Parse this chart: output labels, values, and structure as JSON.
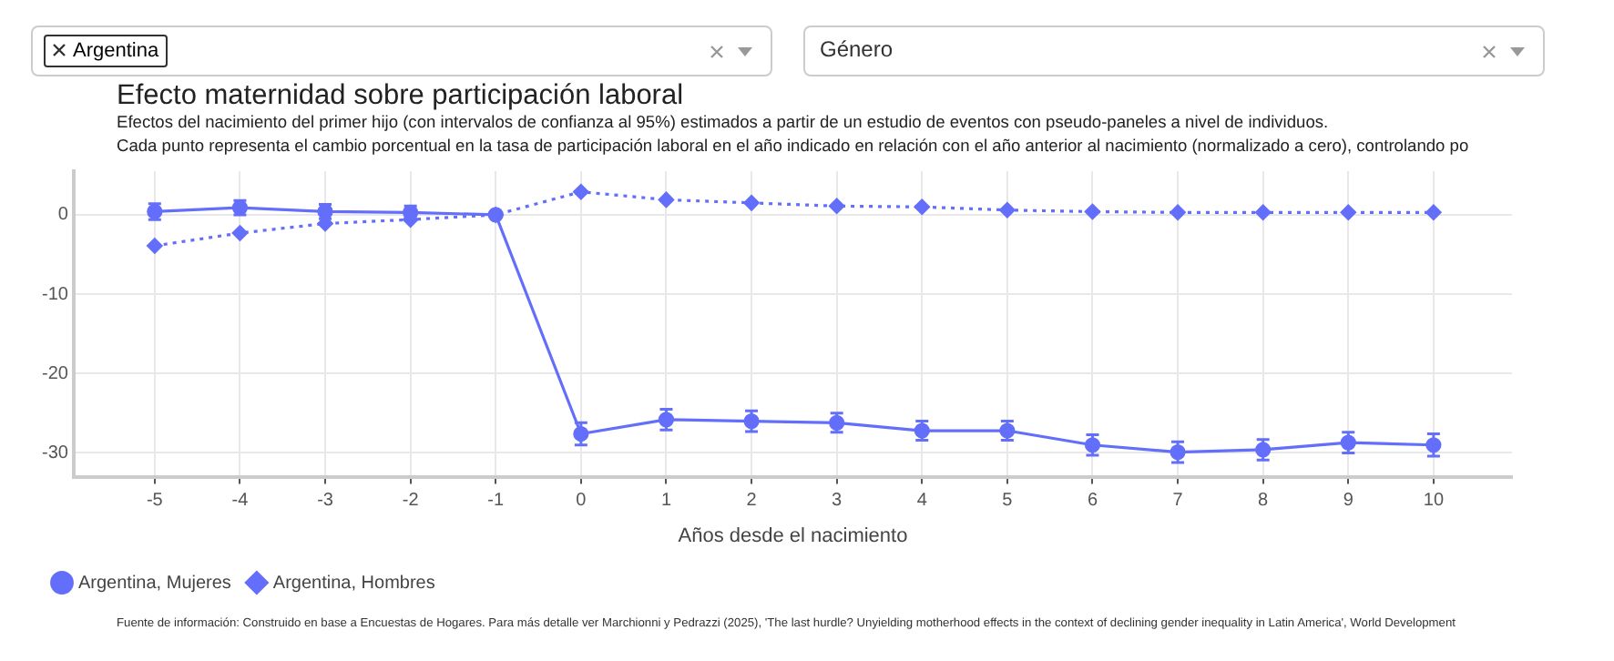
{
  "chart_data": {
    "type": "line",
    "title": "Efecto maternidad sobre participación laboral",
    "subtitle": "Efectos del nacimiento del primer hijo (con intervalos de confianza al 95%) estimados a partir de un estudio de eventos con pseudo-paneles a nivel de individuos.\nCada punto representa el cambio porcentual en la tasa de participación laboral en el año indicado en relación con el año anterior al nacimiento (normalizado a cero), controlando po",
    "xlabel": "Años desde el nacimiento",
    "x": [
      -5,
      -4,
      -3,
      -2,
      -1,
      0,
      1,
      2,
      3,
      4,
      5,
      6,
      7,
      8,
      9,
      10
    ],
    "series": [
      {
        "name": "Argentina, Mujeres",
        "color": "#636efa",
        "marker": "circle",
        "line_style": "solid",
        "values": [
          0.4,
          0.9,
          0.4,
          0.3,
          0,
          -27.6,
          -25.8,
          -26.0,
          -26.2,
          -27.2,
          -27.2,
          -29.0,
          -29.9,
          -29.6,
          -28.7,
          -29.0
        ],
        "errors": [
          1.0,
          0.9,
          0.9,
          0.8,
          null,
          1.4,
          1.3,
          1.3,
          1.2,
          1.2,
          1.2,
          1.3,
          1.3,
          1.3,
          1.3,
          1.4
        ]
      },
      {
        "name": "Argentina, Hombres",
        "color": "#636efa",
        "marker": "diamond",
        "line_style": "dotted",
        "values": [
          -3.9,
          -2.3,
          -1.1,
          -0.6,
          0,
          2.9,
          1.9,
          1.5,
          1.1,
          1.0,
          0.6,
          0.4,
          0.3,
          0.3,
          0.3,
          0.3
        ]
      }
    ],
    "xlim": [
      -5.95,
      10.92
    ],
    "xticks": [
      -5,
      -4,
      -3,
      -2,
      -1,
      0,
      1,
      2,
      3,
      4,
      5,
      6,
      7,
      8,
      9,
      10
    ],
    "ylim": [
      -33,
      5.5
    ],
    "yticks": [
      -30,
      -20,
      -10,
      0
    ],
    "grid": true,
    "legend": "bottom left",
    "annotations": [
      "Argentina",
      "Género",
      "Fuente de información: Construido en base a Encuestas de Hogares. Para más detalle ver Marchionni y Pedrazzi (2025), 'The last hurdle? Unyielding motherhood effects in the context of declining gender inequality in Latin America', World Development"
    ]
  }
}
